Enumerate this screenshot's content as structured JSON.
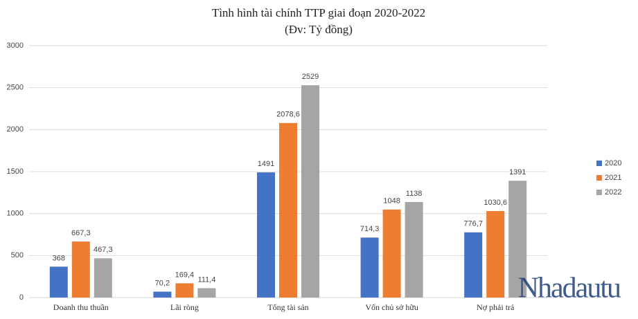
{
  "chart_data": {
    "type": "bar",
    "title": "Tình hình tài chính TTP giai  đoạn 2020-2022",
    "subtitle": "(Đv: Tỷ đồng)",
    "categories": [
      "Doanh thu thuần",
      "Lãi ròng",
      "Tổng tài sản",
      "Vốn chủ sở hữu",
      "Nợ phải trả"
    ],
    "series": [
      {
        "name": "2020",
        "color": "#4472c4",
        "values": [
          368,
          70.2,
          1491,
          714.3,
          776.7
        ],
        "value_labels": [
          "368",
          "70,2",
          "1491",
          "714,3",
          "776,7"
        ]
      },
      {
        "name": "2021",
        "color": "#ed7d31",
        "values": [
          667.3,
          169.4,
          2078.6,
          1048,
          1030.6
        ],
        "value_labels": [
          "667,3",
          "169,4",
          "2078,6",
          "1048",
          "1030,6"
        ]
      },
      {
        "name": "2022",
        "color": "#a5a5a5",
        "values": [
          467.3,
          111.4,
          2529,
          1138,
          1391
        ],
        "value_labels": [
          "467,3",
          "111,4",
          "2529",
          "1138",
          "1391"
        ]
      }
    ],
    "ylim": [
      0,
      3000
    ],
    "yticks": [
      0,
      500,
      1000,
      1500,
      2000,
      2500,
      3000
    ],
    "grid": true,
    "legend": "right",
    "watermark": "Nhadautu"
  }
}
